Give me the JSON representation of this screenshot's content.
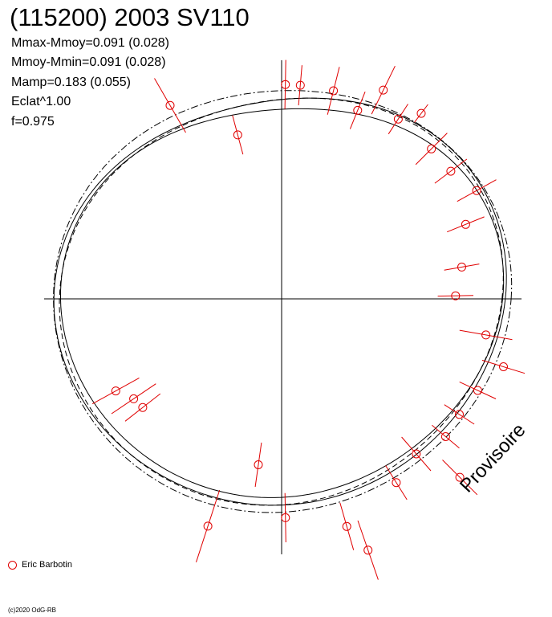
{
  "header": {
    "title": "(115200) 2003 SV110",
    "stats": [
      "Mmax-Mmoy=0.091 (0.028)",
      "Mmoy-Mmin=0.091 (0.028)",
      "Mamp=0.183 (0.055)",
      "Eclat^1.00",
      "f=0.975"
    ]
  },
  "legend": {
    "observer": "Eric Barbotin"
  },
  "footer": {
    "copyright": "(c)2020 OdG-RB"
  },
  "watermark": "Provisoire",
  "colors": {
    "observations": "#e00000",
    "curves": "#000000",
    "axes": "#000000"
  },
  "chart_data": {
    "type": "scatter",
    "projection": "polar",
    "angle_unit": "deg",
    "amplitude_units": "mag",
    "title": "(115200) 2003 SV110",
    "series": [
      {
        "name": "Eric Barbotin",
        "points": [
          {
            "angle": 120,
            "r": 1.0,
            "err": 0.14
          },
          {
            "angle": 105,
            "r": 0.76,
            "err": 0.09
          },
          {
            "angle": 89,
            "r": 0.96,
            "err": 0.11
          },
          {
            "angle": 85,
            "r": 0.96,
            "err": 0.09
          },
          {
            "angle": 76,
            "r": 0.96,
            "err": 0.11
          },
          {
            "angle": 68,
            "r": 0.91,
            "err": 0.09
          },
          {
            "angle": 64,
            "r": 1.04,
            "err": 0.12
          },
          {
            "angle": 57,
            "r": 0.96,
            "err": 0.08
          },
          {
            "angle": 53,
            "r": 1.04,
            "err": 0.05
          },
          {
            "angle": 45,
            "r": 0.95,
            "err": 0.1
          },
          {
            "angle": 37,
            "r": 0.95,
            "err": 0.09
          },
          {
            "angle": 29,
            "r": 1.0,
            "err": 0.1
          },
          {
            "angle": 22,
            "r": 0.89,
            "err": 0.09
          },
          {
            "angle": 10,
            "r": 0.82,
            "err": 0.08
          },
          {
            "angle": 1,
            "r": 0.78,
            "err": 0.08
          },
          {
            "angle": -10,
            "r": 0.93,
            "err": 0.12
          },
          {
            "angle": -17,
            "r": 1.04,
            "err": 0.1
          },
          {
            "angle": -25,
            "r": 0.97,
            "err": 0.09
          },
          {
            "angle": -33,
            "r": 0.95,
            "err": 0.08
          },
          {
            "angle": -40,
            "r": 0.96,
            "err": 0.08
          },
          {
            "angle": -45,
            "r": 1.13,
            "err": 0.11
          },
          {
            "angle": -49,
            "r": 0.92,
            "err": 0.1
          },
          {
            "angle": -58,
            "r": 0.97,
            "err": 0.09
          },
          {
            "angle": -71,
            "r": 1.19,
            "err": 0.14
          },
          {
            "angle": -74,
            "r": 1.06,
            "err": 0.11
          },
          {
            "angle": -89,
            "r": 0.98,
            "err": 0.11
          },
          {
            "angle": -98,
            "r": 0.75,
            "err": 0.1
          },
          {
            "angle": -108,
            "r": 1.07,
            "err": 0.17
          },
          {
            "angle": -142,
            "r": 0.79,
            "err": 0.1
          },
          {
            "angle": -146,
            "r": 0.8,
            "err": 0.12
          },
          {
            "angle": -151,
            "r": 0.85,
            "err": 0.12
          }
        ]
      }
    ],
    "model_curves": [
      {
        "style": "solid",
        "r0": 0.93,
        "a2": 0.065,
        "phase": 10,
        "a3": 0.02,
        "p3": 30
      },
      {
        "style": "solid",
        "r0": 0.96,
        "a2": 0.06,
        "phase": 15,
        "a3": 0.018,
        "p3": 40
      },
      {
        "style": "dashed",
        "r0": 0.95,
        "a2": 0.055,
        "phase": 20,
        "a3": 0.015,
        "p3": 35
      },
      {
        "style": "dashdot",
        "r0": 0.985,
        "a2": 0.045,
        "phase": 12,
        "a3": 0.012,
        "p3": 25
      }
    ]
  }
}
